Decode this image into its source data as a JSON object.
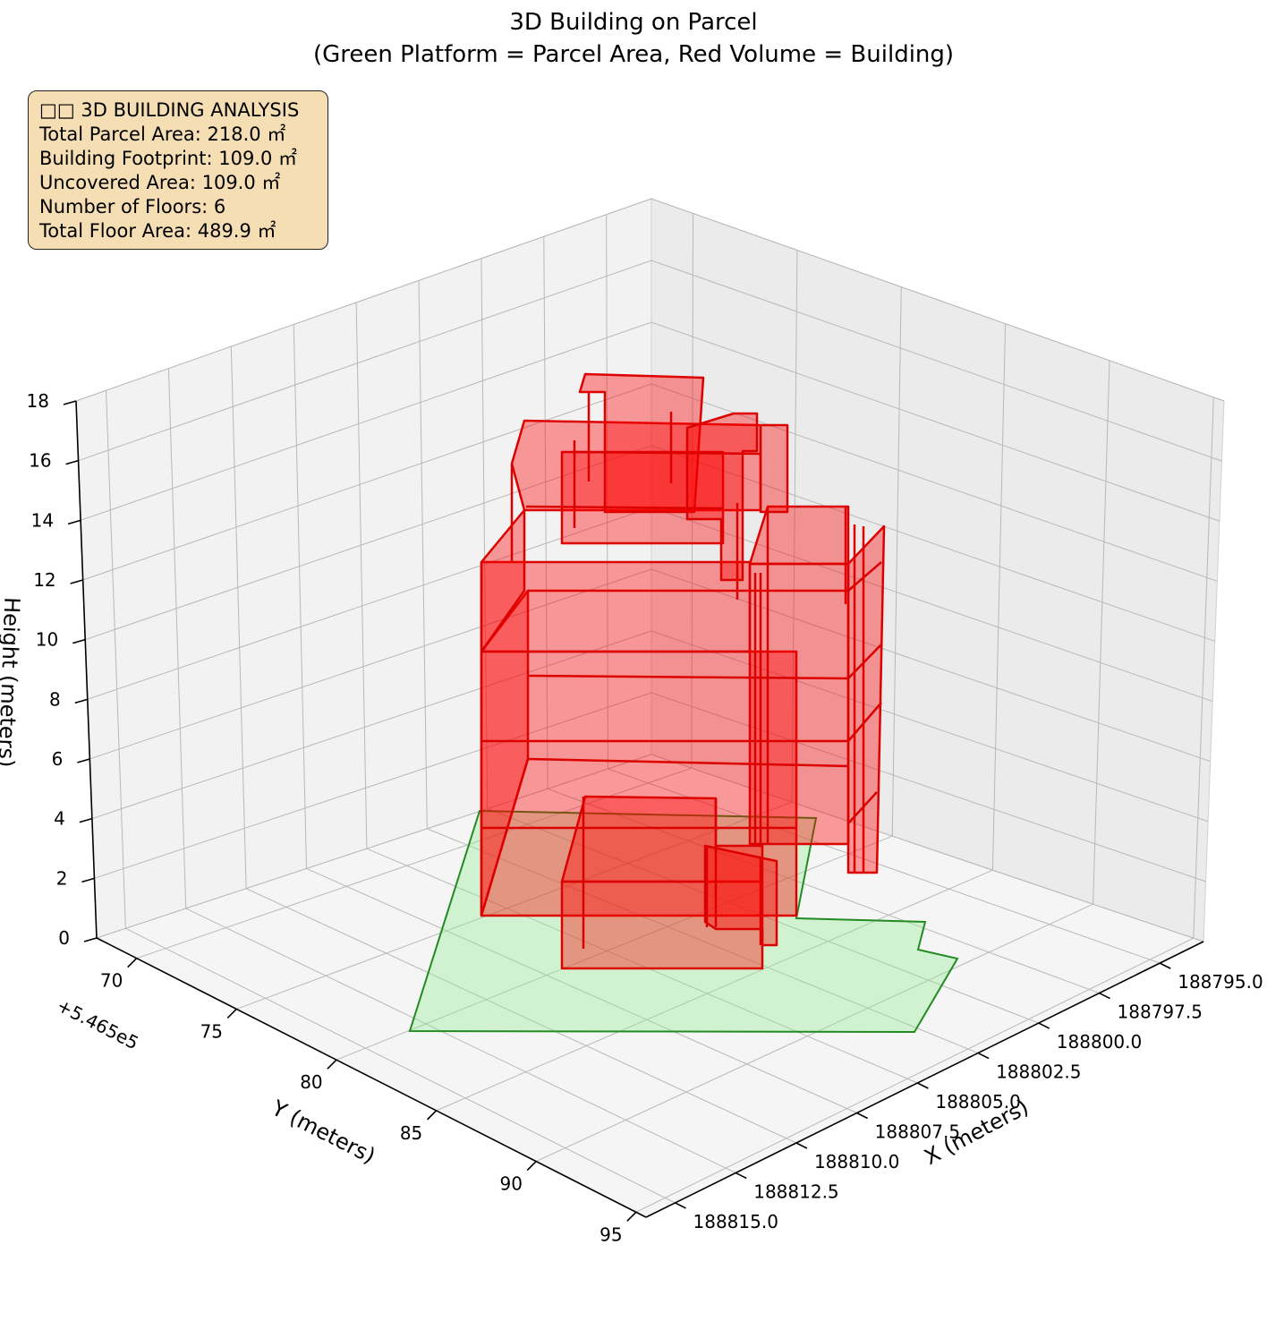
{
  "title_line1": "3D Building on Parcel",
  "title_line2": "(Green Platform = Parcel Area, Red Volume = Building)",
  "info": {
    "heading": "□□ 3D BUILDING ANALYSIS",
    "lines": [
      "Total Parcel Area: 218.0 ㎡",
      "Building Footprint: 109.0 ㎡",
      "Uncovered Area: 109.0 ㎡",
      "Number of Floors: 6",
      "Total Floor Area: 489.9 ㎡"
    ]
  },
  "chart_data": {
    "type": "3d-polygon",
    "xlabel": "X (meters)",
    "ylabel": "Y (meters)",
    "zlabel": "Height (meters)",
    "y_offset_label": "+5.465e5",
    "x_ticks": [
      "188795.0",
      "188797.5",
      "188800.0",
      "188802.5",
      "188805.0",
      "188807.5",
      "188810.0",
      "188812.5",
      "188815.0"
    ],
    "y_ticks": [
      "70",
      "75",
      "80",
      "85",
      "90",
      "95"
    ],
    "z_ticks": [
      "0",
      "2",
      "4",
      "6",
      "8",
      "10",
      "12",
      "14",
      "16",
      "18"
    ],
    "z_range": [
      0,
      18
    ],
    "colors": {
      "parcel": "#90ee90",
      "parcel_edge": "#228b22",
      "building": "#ff0000",
      "building_edge": "#dd0000"
    },
    "parcel_area_m2": 218.0,
    "building_footprint_m2": 109.0,
    "floors": 6
  }
}
